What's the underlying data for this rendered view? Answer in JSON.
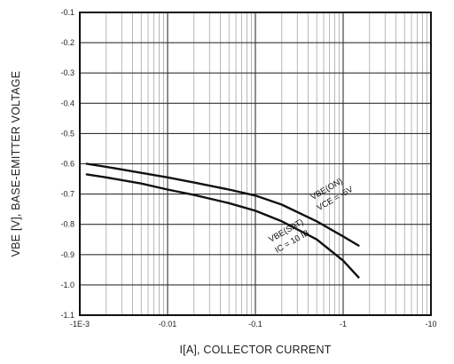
{
  "chart_data": {
    "type": "line",
    "title": "",
    "xlabel": "I⁣[A], COLLECTOR CURRENT",
    "ylabel": "VBE [V], BASE-EMITTER VOLTAGE",
    "x_scale": "log",
    "xlim": [
      0.001,
      10
    ],
    "ylim": [
      -1.1,
      -0.1
    ],
    "grid": true,
    "x_ticks": [
      {
        "value": 0.001,
        "label": "-1E-3"
      },
      {
        "value": 0.01,
        "label": "-0.01"
      },
      {
        "value": 0.1,
        "label": "-0.1"
      },
      {
        "value": 1,
        "label": "-1"
      },
      {
        "value": 10,
        "label": "-10"
      }
    ],
    "y_ticks": [
      {
        "value": -1.1,
        "label": "-1.1"
      },
      {
        "value": -1.0,
        "label": "-1.0"
      },
      {
        "value": -0.9,
        "label": "-0.9"
      },
      {
        "value": -0.8,
        "label": "-0.8"
      },
      {
        "value": -0.7,
        "label": "-0.7"
      },
      {
        "value": -0.6,
        "label": "-0.6"
      },
      {
        "value": -0.5,
        "label": "-0.5"
      },
      {
        "value": -0.4,
        "label": "-0.4"
      },
      {
        "value": -0.3,
        "label": "-0.3"
      },
      {
        "value": -0.2,
        "label": "-0.2"
      },
      {
        "value": -0.1,
        "label": "-0.1"
      }
    ],
    "series": [
      {
        "name": "VBE(SAT) IC = 10 IB",
        "color": "#111111",
        "x": [
          0.0012,
          0.002,
          0.005,
          0.01,
          0.02,
          0.05,
          0.1,
          0.2,
          0.5,
          1.0,
          1.5
        ],
        "y": [
          -0.635,
          -0.645,
          -0.665,
          -0.685,
          -0.703,
          -0.73,
          -0.755,
          -0.79,
          -0.85,
          -0.92,
          -0.975
        ]
      },
      {
        "name": "VBE(ON) VCE = -5V",
        "color": "#111111",
        "x": [
          0.0012,
          0.002,
          0.005,
          0.01,
          0.02,
          0.05,
          0.1,
          0.2,
          0.5,
          1.0,
          1.5
        ],
        "y": [
          -0.6,
          -0.61,
          -0.63,
          -0.645,
          -0.662,
          -0.685,
          -0.705,
          -0.735,
          -0.79,
          -0.84,
          -0.87
        ]
      }
    ],
    "annotations": [
      {
        "line1": "VBE(SAT)",
        "line2": "IC = 10 IB",
        "x": 0.15,
        "y": -0.86
      },
      {
        "line1": "VBE(ON)",
        "line2": "VCE = -5V",
        "x": 0.45,
        "y": -0.72
      }
    ]
  }
}
